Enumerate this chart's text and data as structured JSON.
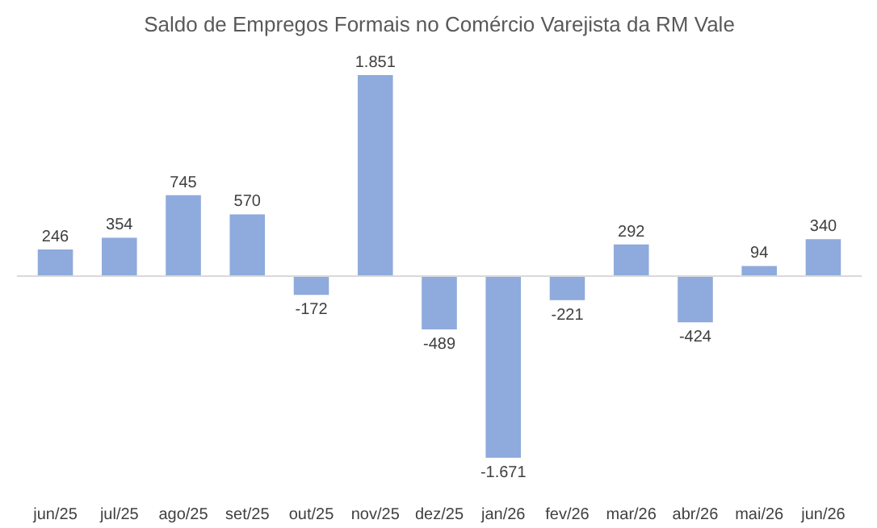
{
  "chart_data": {
    "type": "bar",
    "title": "Saldo de Empregos Formais no Comércio Varejista da RM Vale",
    "categories": [
      "jun/25",
      "jul/25",
      "ago/25",
      "set/25",
      "out/25",
      "nov/25",
      "dez/25",
      "jan/26",
      "fev/26",
      "mar/26",
      "abr/26",
      "mai/26",
      "jun/26"
    ],
    "values": [
      246,
      354,
      745,
      570,
      -172,
      1851,
      -489,
      -1671,
      -221,
      292,
      -424,
      94,
      340
    ],
    "value_labels": [
      "246",
      "354",
      "745",
      "570",
      "-172",
      "1.851",
      "-489",
      "-1.671",
      "-221",
      "292",
      "-424",
      "94",
      "340"
    ],
    "color": "#8faadc",
    "grid": false
  }
}
